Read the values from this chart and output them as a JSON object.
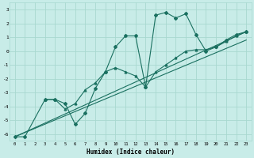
{
  "xlabel": "Humidex (Indice chaleur)",
  "bg_color": "#c8ece8",
  "grid_color": "#a8d8d0",
  "line_color": "#1a7060",
  "xlim": [
    -0.5,
    23.5
  ],
  "ylim": [
    -6.5,
    3.5
  ],
  "yticks": [
    -6,
    -5,
    -4,
    -3,
    -2,
    -1,
    0,
    1,
    2,
    3
  ],
  "xticks": [
    0,
    1,
    2,
    3,
    4,
    5,
    6,
    7,
    8,
    9,
    10,
    11,
    12,
    13,
    14,
    15,
    16,
    17,
    18,
    19,
    20,
    21,
    22,
    23
  ],
  "series": [
    {
      "x": [
        0,
        1,
        3,
        4,
        5,
        6,
        7,
        8,
        9,
        10,
        11,
        12,
        13,
        14,
        15,
        16,
        17,
        18,
        19,
        20,
        21,
        22,
        23
      ],
      "y": [
        -6.2,
        -6.2,
        -3.5,
        -3.5,
        -3.8,
        -5.3,
        -4.5,
        -2.7,
        -1.5,
        0.3,
        1.1,
        1.1,
        -2.6,
        2.6,
        2.8,
        2.4,
        2.7,
        1.2,
        0.0,
        0.3,
        0.8,
        1.2,
        1.4
      ],
      "marker": "D",
      "markersize": 2.0
    },
    {
      "x": [
        3,
        4,
        5,
        6,
        7,
        8,
        9,
        10,
        11,
        12,
        13,
        14,
        15,
        16,
        17,
        18,
        19,
        20,
        21,
        22,
        23
      ],
      "y": [
        -3.5,
        -3.5,
        -4.2,
        -3.8,
        -2.8,
        -2.3,
        -1.5,
        -1.2,
        -1.5,
        -1.8,
        -2.6,
        -1.5,
        -1.0,
        -0.5,
        0.0,
        0.1,
        0.1,
        0.3,
        0.7,
        1.1,
        1.4
      ],
      "marker": "^",
      "markersize": 2.0
    },
    {
      "x": [
        0,
        23
      ],
      "y": [
        -6.2,
        1.4
      ],
      "marker": null,
      "markersize": 0
    },
    {
      "x": [
        0,
        23
      ],
      "y": [
        -6.2,
        0.8
      ],
      "marker": null,
      "markersize": 0
    }
  ]
}
